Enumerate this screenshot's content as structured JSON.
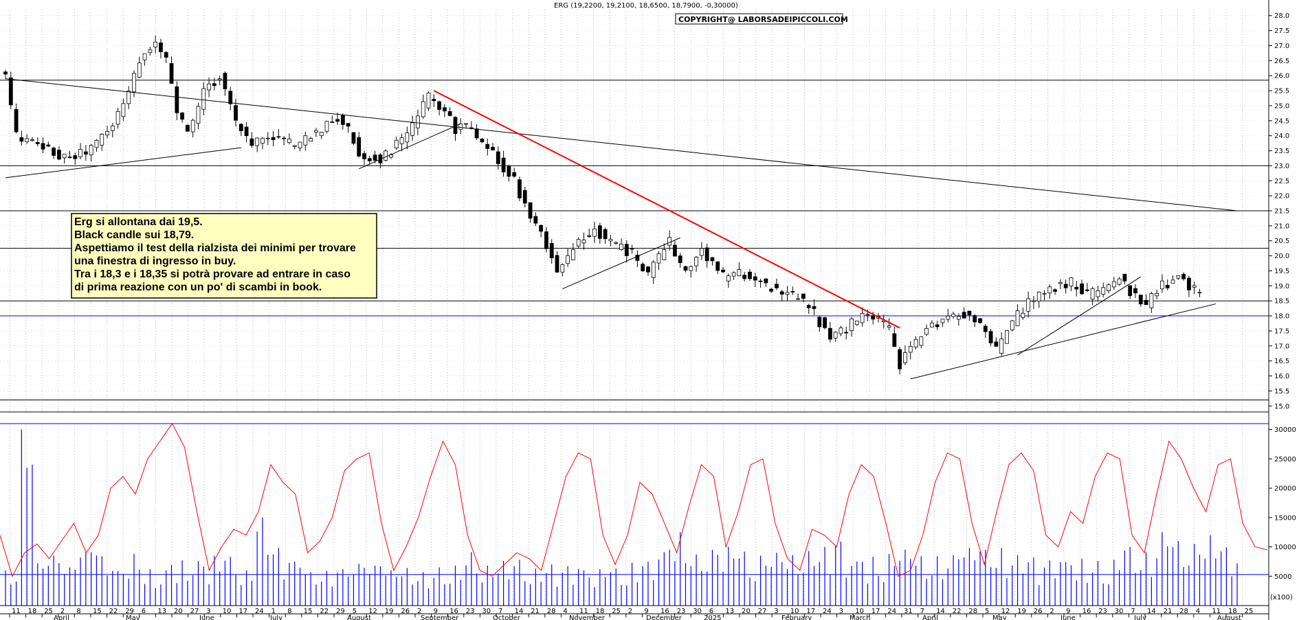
{
  "header": {
    "quote": "ERG (19,2200, 19,2100, 18,6500, 18,7900, -0,30000)",
    "copyright": "COPYRIGHT@ LABORSADEIPICCOLI.COM"
  },
  "annotation": {
    "lines": [
      "Erg si allontana dai 19,5.",
      "Black candle sui 18,79.",
      "Aspettiamo il test della rialzista dei minimi per trovare",
      "una finestra di ingresso in buy.",
      "Tra i 18,3 e i 18,35 si potrà provare ad entrare in caso",
      "di prima reazione con un po' di scambi in book."
    ]
  },
  "volume_tag": "(x100)",
  "colors": {
    "bg": "#ffffff",
    "grid": "#b8b8b8",
    "candle": "#000000",
    "trendline": "#000000",
    "resistance_line": "#ff0000",
    "volume": "#0000ff",
    "oscillator": "#ff0000",
    "note_bg": "#ffffc0"
  },
  "chart_data": [
    {
      "type": "candlestick",
      "title": "ERG",
      "ylim": [
        14.8,
        28.2
      ],
      "y_ticks": [
        "15.0",
        "15.5",
        "16.0",
        "16.5",
        "17.0",
        "17.5",
        "18.0",
        "18.5",
        "19.0",
        "19.5",
        "20.0",
        "20.5",
        "21.0",
        "21.5",
        "22.0",
        "22.5",
        "23.0",
        "23.5",
        "24.0",
        "24.5",
        "25.0",
        "25.5",
        "26.0",
        "26.5",
        "27.0",
        "27.5",
        "28.0"
      ],
      "last_candle": {
        "open": 19.22,
        "high": 19.21,
        "low": 18.65,
        "close": 18.79,
        "change": -0.3
      },
      "close_path": [
        {
          "x": 0,
          "y": 26.0
        },
        {
          "x": 2,
          "y": 24.0
        },
        {
          "x": 8,
          "y": 23.5
        },
        {
          "x": 12,
          "y": 23.2
        },
        {
          "x": 16,
          "y": 23.6
        },
        {
          "x": 20,
          "y": 24.3
        },
        {
          "x": 24,
          "y": 26.0
        },
        {
          "x": 26,
          "y": 26.8
        },
        {
          "x": 28,
          "y": 27.2
        },
        {
          "x": 30,
          "y": 26.5
        },
        {
          "x": 32,
          "y": 24.8
        },
        {
          "x": 34,
          "y": 24.0
        },
        {
          "x": 37,
          "y": 25.5
        },
        {
          "x": 40,
          "y": 26.0
        },
        {
          "x": 43,
          "y": 24.5
        },
        {
          "x": 46,
          "y": 23.8
        },
        {
          "x": 50,
          "y": 24.0
        },
        {
          "x": 54,
          "y": 23.7
        },
        {
          "x": 58,
          "y": 24.1
        },
        {
          "x": 62,
          "y": 24.6
        },
        {
          "x": 64,
          "y": 24.2
        },
        {
          "x": 66,
          "y": 23.4
        },
        {
          "x": 70,
          "y": 23.2
        },
        {
          "x": 75,
          "y": 24.0
        },
        {
          "x": 79,
          "y": 25.3
        },
        {
          "x": 82,
          "y": 24.9
        },
        {
          "x": 84,
          "y": 24.2
        },
        {
          "x": 86,
          "y": 24.4
        },
        {
          "x": 88,
          "y": 23.8
        },
        {
          "x": 92,
          "y": 23.2
        },
        {
          "x": 95,
          "y": 22.5
        },
        {
          "x": 97,
          "y": 21.7
        },
        {
          "x": 100,
          "y": 20.8
        },
        {
          "x": 103,
          "y": 19.4
        },
        {
          "x": 106,
          "y": 20.2
        },
        {
          "x": 110,
          "y": 20.9
        },
        {
          "x": 113,
          "y": 20.4
        },
        {
          "x": 117,
          "y": 20.1
        },
        {
          "x": 120,
          "y": 19.4
        },
        {
          "x": 124,
          "y": 20.5
        },
        {
          "x": 127,
          "y": 19.4
        },
        {
          "x": 130,
          "y": 20.2
        },
        {
          "x": 134,
          "y": 19.3
        },
        {
          "x": 138,
          "y": 19.4
        },
        {
          "x": 142,
          "y": 19.0
        },
        {
          "x": 146,
          "y": 18.8
        },
        {
          "x": 150,
          "y": 18.4
        },
        {
          "x": 152,
          "y": 17.8
        },
        {
          "x": 154,
          "y": 17.3
        },
        {
          "x": 157,
          "y": 17.6
        },
        {
          "x": 160,
          "y": 18.0
        },
        {
          "x": 163,
          "y": 17.9
        },
        {
          "x": 165,
          "y": 17.5
        },
        {
          "x": 167,
          "y": 16.4
        },
        {
          "x": 169,
          "y": 16.9
        },
        {
          "x": 172,
          "y": 17.6
        },
        {
          "x": 176,
          "y": 18.0
        },
        {
          "x": 180,
          "y": 18.1
        },
        {
          "x": 183,
          "y": 17.4
        },
        {
          "x": 185,
          "y": 16.9
        },
        {
          "x": 188,
          "y": 17.8
        },
        {
          "x": 191,
          "y": 18.4
        },
        {
          "x": 195,
          "y": 18.9
        },
        {
          "x": 199,
          "y": 19.1
        },
        {
          "x": 202,
          "y": 18.7
        },
        {
          "x": 205,
          "y": 18.9
        },
        {
          "x": 208,
          "y": 19.3
        },
        {
          "x": 211,
          "y": 18.6
        },
        {
          "x": 213,
          "y": 18.4
        },
        {
          "x": 216,
          "y": 19.0
        },
        {
          "x": 219,
          "y": 19.3
        },
        {
          "x": 221,
          "y": 19.0
        },
        {
          "x": 223,
          "y": 18.79
        }
      ],
      "horizontal_levels": [
        25.85,
        23.0,
        21.5,
        20.25,
        18.5,
        18.0,
        15.2
      ],
      "trendlines": [
        {
          "from": [
            0,
            25.9
          ],
          "to": [
            230,
            21.5
          ],
          "color": "black"
        },
        {
          "from": [
            0,
            22.6
          ],
          "to": [
            44,
            23.6
          ],
          "color": "black"
        },
        {
          "from": [
            66,
            22.9
          ],
          "to": [
            85,
            24.4
          ],
          "color": "black"
        },
        {
          "from": [
            104,
            18.9
          ],
          "to": [
            126,
            20.6
          ],
          "color": "black"
        },
        {
          "from": [
            80,
            25.5
          ],
          "to": [
            167,
            17.6
          ],
          "color": "red"
        },
        {
          "from": [
            169,
            15.9
          ],
          "to": [
            226,
            18.4
          ],
          "color": "black"
        },
        {
          "from": [
            189,
            16.7
          ],
          "to": [
            212,
            19.3
          ],
          "color": "black"
        }
      ]
    },
    {
      "type": "bar",
      "name": "",
      "ylim": [
        0,
        31000
      ],
      "y_ticks": [
        "5000",
        "10000",
        "15000",
        "20000",
        "25000",
        "30000"
      ],
      "values": [
        6000,
        30000,
        7200,
        8500,
        6500,
        9200,
        11000,
        8400,
        5900,
        8800,
        6200,
        6000,
        7700,
        8700,
        7600,
        8500,
        8300,
        6000,
        15000,
        9800,
        8600,
        7500,
        5700,
        5900,
        6200,
        7100,
        6800,
        7300,
        6000,
        6400,
        5700,
        6500,
        6800,
        9100,
        6000,
        6800,
        7600,
        7800,
        6300,
        7000,
        6700,
        7200,
        6000,
        6200,
        6300,
        7300,
        7500,
        9100,
        11000,
        12500,
        8700,
        9500,
        10000,
        9200,
        8500,
        11100,
        9000,
        8600,
        9300,
        10000,
        10900,
        7500,
        8300,
        8300,
        8800,
        9500,
        8400,
        8400,
        8600,
        9100,
        9800,
        9500,
        9800,
        8600,
        8200,
        7700,
        8100,
        7400,
        8000,
        7600,
        7800,
        10000,
        9100,
        8700,
        12500,
        11000,
        10500,
        12000,
        9900,
        8600
      ],
      "values_note": "volume (x100); spike values read off tall bars, remaining bars estimated in the 3000-9000 band"
    },
    {
      "type": "line",
      "name": "",
      "ylim": [
        0,
        31000
      ],
      "values": [
        12000,
        5000,
        9000,
        10500,
        8000,
        11000,
        14000,
        9000,
        12000,
        20000,
        22000,
        19000,
        25000,
        28000,
        31000,
        27000,
        16000,
        6000,
        10000,
        13000,
        12000,
        16000,
        24000,
        21000,
        19000,
        9000,
        11000,
        15000,
        23000,
        25000,
        26000,
        14000,
        6000,
        10000,
        15000,
        22000,
        28000,
        24000,
        12000,
        6000,
        5000,
        7000,
        9000,
        8000,
        6000,
        14000,
        22000,
        26000,
        25000,
        12000,
        7000,
        12000,
        21000,
        19000,
        14000,
        9000,
        17000,
        24000,
        22000,
        10000,
        16000,
        24000,
        25000,
        14000,
        8000,
        6000,
        13000,
        12000,
        10000,
        19000,
        24000,
        22000,
        14000,
        5000,
        6000,
        12000,
        21000,
        26000,
        25000,
        14000,
        7000,
        16000,
        24000,
        26000,
        23000,
        12000,
        10000,
        16000,
        14000,
        22000,
        26000,
        25000,
        12000,
        9000,
        19000,
        28000,
        25000,
        20000,
        16000,
        24000,
        25000,
        14000,
        10000,
        9500
      ]
    }
  ],
  "x_axis": {
    "day_ticks": [
      "11",
      "18",
      "25",
      "2",
      "8",
      "15",
      "22",
      "29",
      "6",
      "13",
      "20",
      "27",
      "3",
      "10",
      "17",
      "24",
      "1",
      "8",
      "15",
      "22",
      "29",
      "5",
      "12",
      "19",
      "26",
      "2",
      "9",
      "16",
      "23",
      "30",
      "7",
      "14",
      "21",
      "28",
      "4",
      "11",
      "18",
      "25",
      "2",
      "9",
      "16",
      "23",
      "30",
      "6",
      "13",
      "20",
      "27",
      "3",
      "10",
      "17",
      "24",
      "3",
      "10",
      "17",
      "24",
      "31",
      "7",
      "14",
      "22",
      "28",
      "5",
      "12",
      "19",
      "26",
      "2",
      "9",
      "16",
      "23",
      "30",
      "7",
      "14",
      "21",
      "28",
      "4",
      "11",
      "18",
      "25"
    ],
    "months": [
      "April",
      "May",
      "June",
      "July",
      "August",
      "September",
      "October",
      "November",
      "December",
      "2025",
      "February",
      "March",
      "April",
      "May",
      "June",
      "July",
      "August"
    ]
  }
}
